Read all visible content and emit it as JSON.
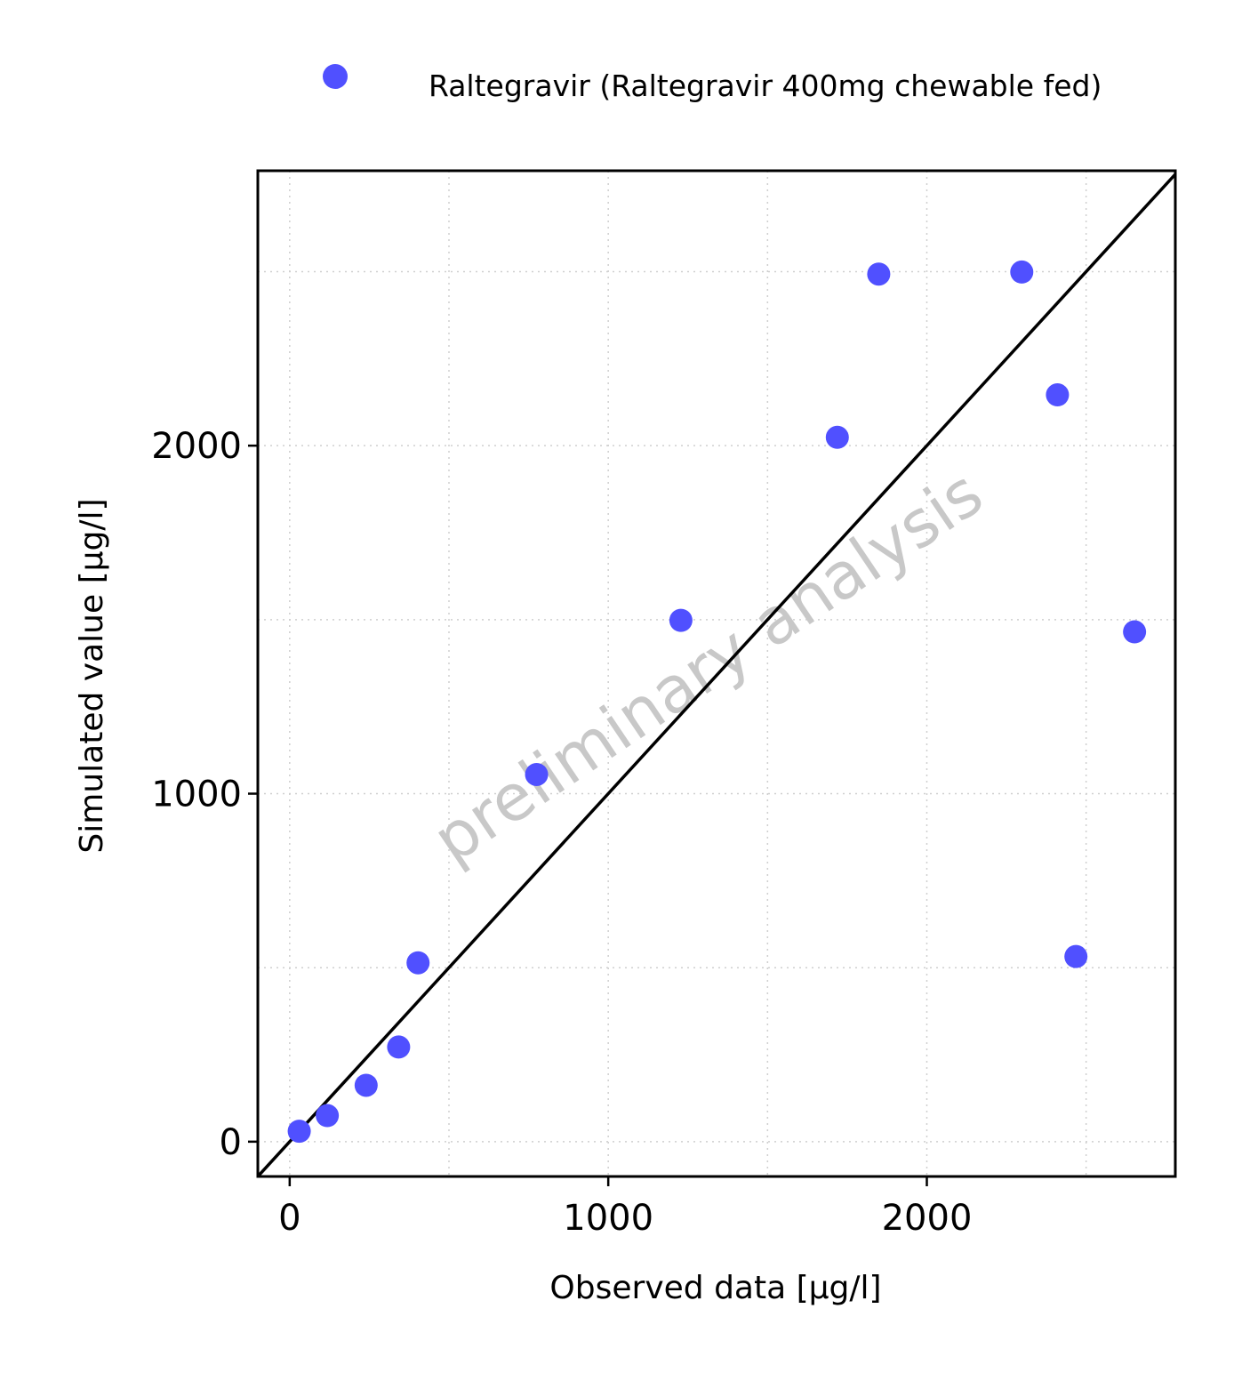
{
  "chart_data": {
    "type": "scatter",
    "xlabel": "Observed data [µg/l]",
    "ylabel": "Simulated value [µg/l]",
    "xlim": [
      -100,
      2780
    ],
    "ylim": [
      -100,
      2790
    ],
    "x_ticks": [
      0,
      1000,
      2000
    ],
    "y_ticks": [
      0,
      1000,
      2000
    ],
    "x_tick_labels": [
      "0",
      "1000",
      "2000"
    ],
    "y_tick_labels": [
      "0",
      "1000",
      "2000"
    ],
    "minor_grid_x": [
      500,
      1500,
      2500
    ],
    "minor_grid_y": [
      500,
      1500,
      2500
    ],
    "grid": true,
    "identity_line": true,
    "legend_position": "top",
    "watermark": "preliminary analysis",
    "series": [
      {
        "name": "Raltegravir (Raltegravir 400mg chewable fed)",
        "color": "#5050ff",
        "marker": "circle",
        "points": [
          {
            "x": 30,
            "y": 30
          },
          {
            "x": 118,
            "y": 75
          },
          {
            "x": 240,
            "y": 162
          },
          {
            "x": 342,
            "y": 272
          },
          {
            "x": 403,
            "y": 514
          },
          {
            "x": 775,
            "y": 1055
          },
          {
            "x": 1228,
            "y": 1498
          },
          {
            "x": 1719,
            "y": 2024
          },
          {
            "x": 1849,
            "y": 2493
          },
          {
            "x": 2298,
            "y": 2499
          },
          {
            "x": 2410,
            "y": 2146
          },
          {
            "x": 2468,
            "y": 532
          },
          {
            "x": 2652,
            "y": 1465
          }
        ]
      }
    ]
  }
}
